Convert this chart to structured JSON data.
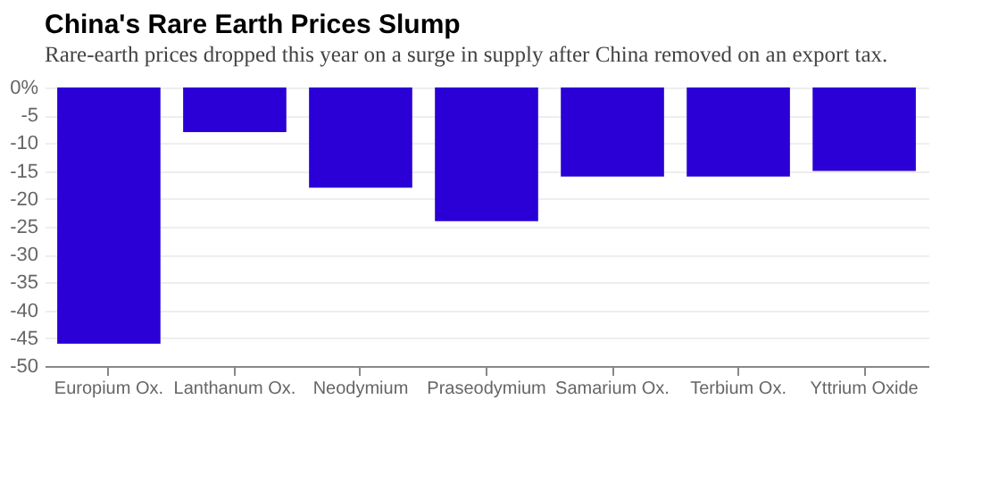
{
  "chart_data": {
    "type": "bar",
    "title": "China's Rare Earth Prices Slump",
    "subtitle": "Rare-earth prices dropped this year on a surge in supply after China removed on an export tax.",
    "categories": [
      "Europium Ox.",
      "Lanthanum Ox.",
      "Neodymium",
      "Praseodymium",
      "Samarium Ox.",
      "Terbium Ox.",
      "Yttrium Oxide"
    ],
    "values": [
      -46,
      -8,
      -18,
      -24,
      -16,
      -16,
      -15
    ],
    "color": "#2a00d6",
    "ylim": [
      -50,
      0
    ],
    "yticks": [
      {
        "value": 0,
        "label": "0%"
      },
      -5,
      -10,
      -15,
      -20,
      -25,
      -30,
      -35,
      -40,
      -45,
      -50
    ],
    "grid": "y"
  }
}
